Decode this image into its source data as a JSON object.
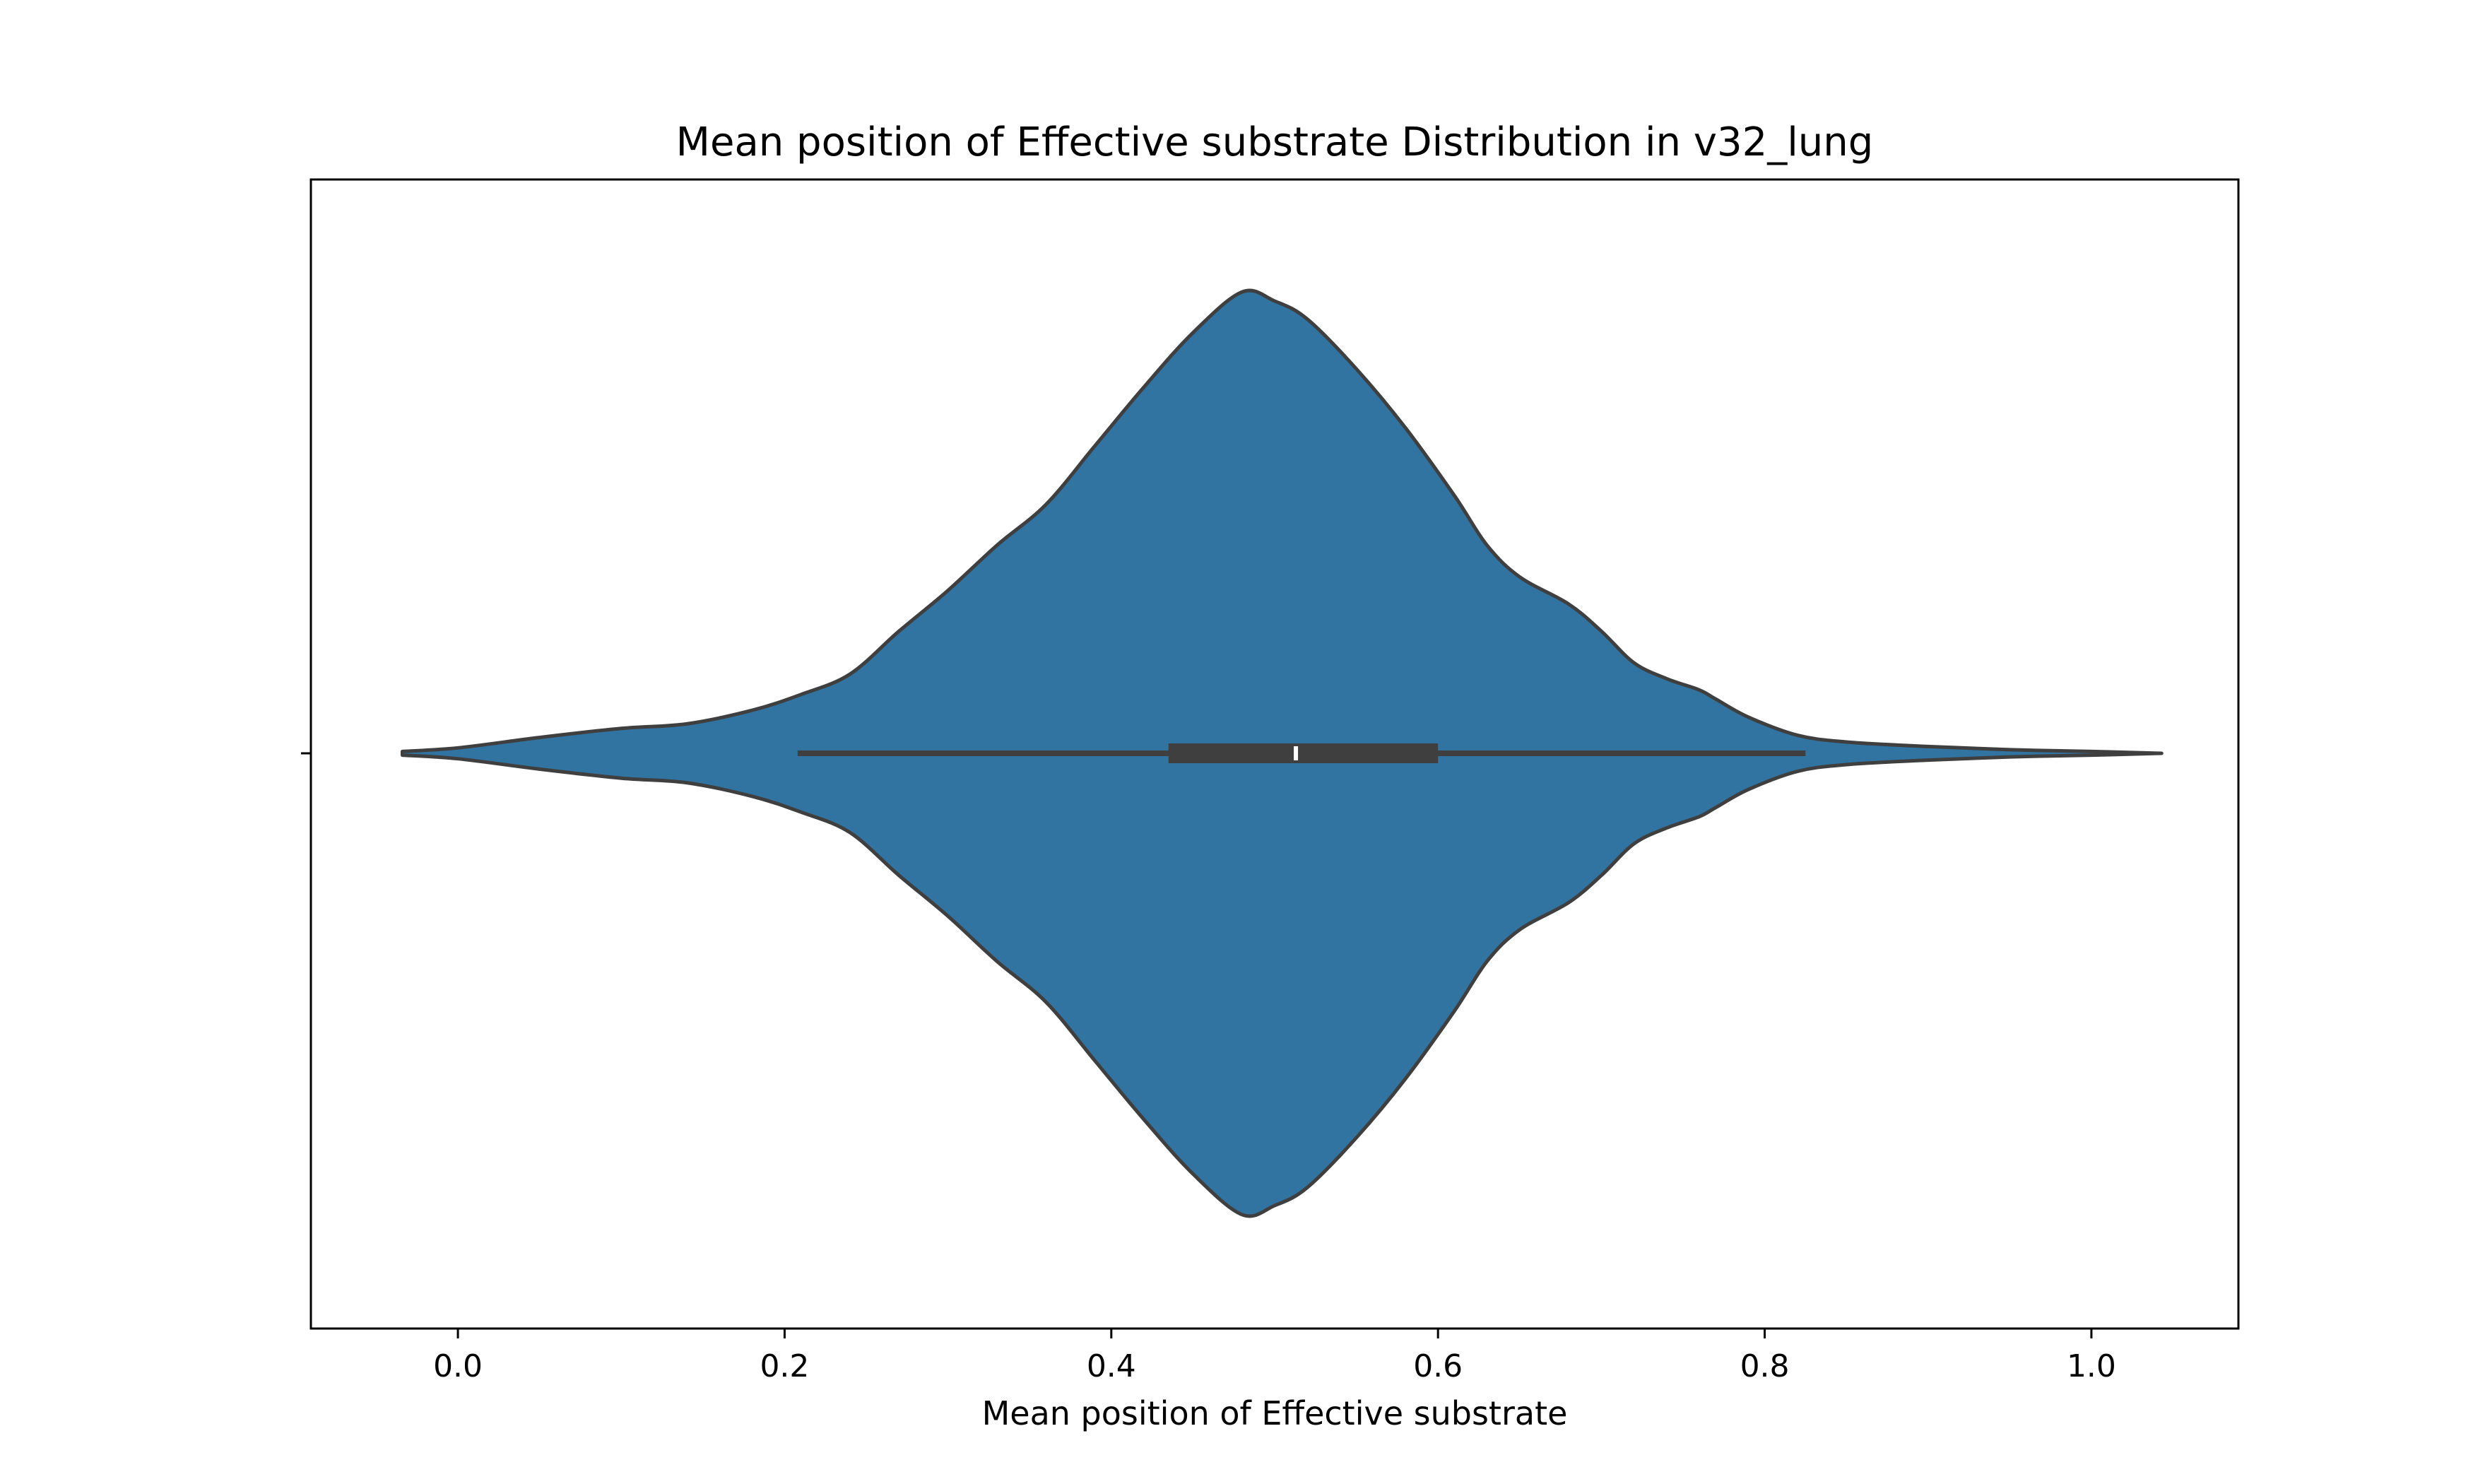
{
  "chart_data": {
    "type": "violin",
    "title": "Mean position of Effective substrate Distribution in v32_lung",
    "xlabel": "Mean position of Effective substrate",
    "ylabel": "",
    "xlim": [
      -0.09,
      1.09
    ],
    "xticks": [
      0.0,
      0.2,
      0.4,
      0.6,
      0.8,
      1.0
    ],
    "xtick_labels": [
      "0.0",
      "0.2",
      "0.4",
      "0.6",
      "0.8",
      "1.0"
    ],
    "orientation": "horizontal",
    "grid": false,
    "legend": "none",
    "fill_color": "#3274a1",
    "edge_color": "#3f3f3f",
    "density": {
      "x": [
        -0.034,
        0.0,
        0.05,
        0.1,
        0.14,
        0.18,
        0.21,
        0.24,
        0.27,
        0.3,
        0.33,
        0.36,
        0.39,
        0.42,
        0.45,
        0.48,
        0.5,
        0.52,
        0.55,
        0.58,
        0.61,
        0.63,
        0.65,
        0.68,
        0.7,
        0.72,
        0.74,
        0.76,
        0.77,
        0.79,
        0.82,
        0.85,
        0.9,
        0.95,
        1.0,
        1.043
      ],
      "width": [
        0.004,
        0.012,
        0.035,
        0.055,
        0.065,
        0.095,
        0.13,
        0.175,
        0.27,
        0.36,
        0.46,
        0.55,
        0.68,
        0.81,
        0.93,
        1.02,
        1.0,
        0.96,
        0.85,
        0.72,
        0.57,
        0.46,
        0.39,
        0.33,
        0.27,
        0.2,
        0.165,
        0.14,
        0.12,
        0.08,
        0.04,
        0.025,
        0.015,
        0.008,
        0.004,
        0.0
      ]
    },
    "box": {
      "whisker_low": 0.208,
      "q1": 0.435,
      "median": 0.513,
      "q3": 0.6,
      "whisker_high": 0.825
    }
  }
}
